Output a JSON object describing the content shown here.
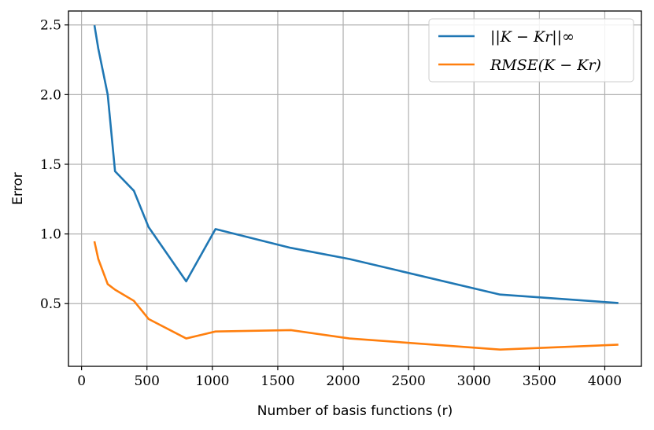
{
  "chart_data": {
    "type": "line",
    "xlabel": "Number of basis functions (r)",
    "ylabel": "Error",
    "xlim": [
      -100,
      4280
    ],
    "ylim": [
      0.05,
      2.6
    ],
    "xticks": [
      0,
      500,
      1000,
      1500,
      2000,
      2500,
      3000,
      3500,
      4000
    ],
    "yticks": [
      0.5,
      1.0,
      1.5,
      2.0,
      2.5
    ],
    "xtick_labels": [
      "0",
      "500",
      "1000",
      "1500",
      "2000",
      "2500",
      "3000",
      "3500",
      "4000"
    ],
    "ytick_labels": [
      "0.5",
      "1.0",
      "1.5",
      "2.0",
      "2.5"
    ],
    "grid": true,
    "legend_position": "top-right",
    "series": [
      {
        "name": "||K − Kr||∞",
        "color": "#1f77b4",
        "x": [
          100,
          128,
          200,
          256,
          400,
          512,
          800,
          1024,
          1600,
          2048,
          3200,
          4096
        ],
        "y": [
          2.49,
          2.33,
          2.0,
          1.45,
          1.31,
          1.05,
          0.66,
          1.035,
          0.9,
          0.82,
          0.565,
          0.505
        ]
      },
      {
        "name": "RMSE(K − Kr)",
        "color": "#ff7f0e",
        "x": [
          100,
          128,
          200,
          256,
          400,
          512,
          800,
          1024,
          1600,
          2048,
          3200,
          4096
        ],
        "y": [
          0.94,
          0.82,
          0.64,
          0.6,
          0.52,
          0.39,
          0.25,
          0.3,
          0.31,
          0.25,
          0.17,
          0.205
        ]
      }
    ]
  }
}
